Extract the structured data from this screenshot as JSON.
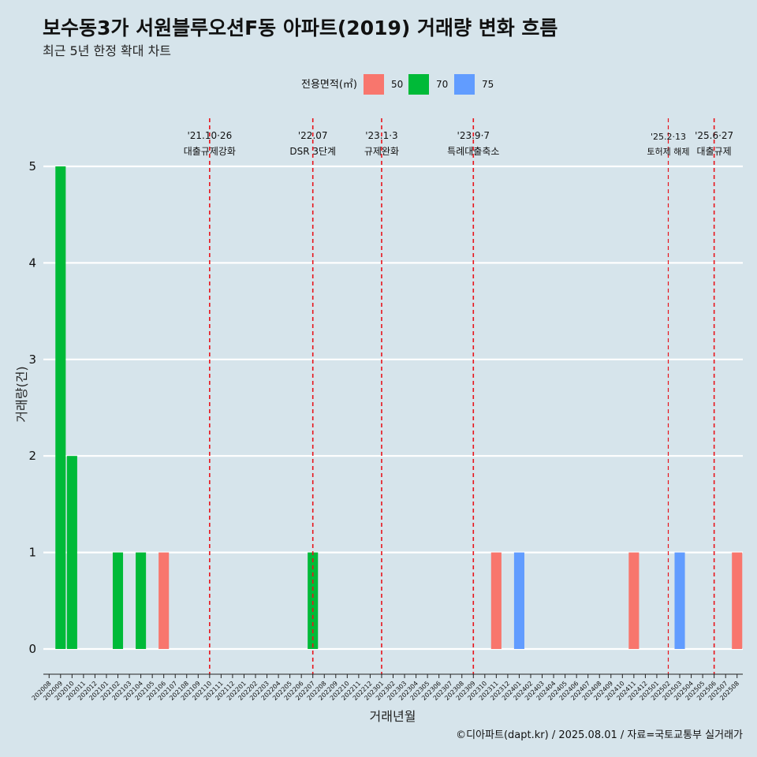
{
  "title": "보수동3가 서원블루오션F동 아파트(2019) 거래량 변화 흐름",
  "subtitle": "최근 5년 한정 확대 차트",
  "caption": "©디아파트(dapt.kr) / 2025.08.01 / 자료=국토교통부 실거래가",
  "chart_data": {
    "type": "bar",
    "xlabel": "거래년월",
    "ylabel": "거래량(건)",
    "ylim": [
      0,
      5
    ],
    "yticks": [
      "0",
      "1",
      "2",
      "3",
      "4",
      "5"
    ],
    "legend": {
      "title": "전용면적(㎡)",
      "placement": "top",
      "items": [
        {
          "label": "50",
          "color": "#F8766D"
        },
        {
          "label": "70",
          "color": "#00BA38"
        },
        {
          "label": "75",
          "color": "#619CFF"
        }
      ]
    },
    "categories": [
      "202008",
      "202009",
      "202010",
      "202011",
      "202012",
      "202101",
      "202102",
      "202103",
      "202104",
      "202105",
      "202106",
      "202107",
      "202108",
      "202109",
      "202110",
      "202111",
      "202112",
      "202201",
      "202202",
      "202203",
      "202204",
      "202205",
      "202206",
      "202207",
      "202208",
      "202209",
      "202210",
      "202211",
      "202212",
      "202301",
      "202302",
      "202303",
      "202304",
      "202305",
      "202306",
      "202307",
      "202308",
      "202309",
      "202310",
      "202311",
      "202312",
      "202401",
      "202402",
      "202403",
      "202404",
      "202405",
      "202406",
      "202407",
      "202408",
      "202409",
      "202410",
      "202411",
      "202412",
      "202501",
      "202502",
      "202503",
      "202504",
      "202505",
      "202506",
      "202507",
      "202508"
    ],
    "bars": [
      {
        "month": "202009",
        "area": "70",
        "value": 5
      },
      {
        "month": "202010",
        "area": "70",
        "value": 2
      },
      {
        "month": "202102",
        "area": "70",
        "value": 1
      },
      {
        "month": "202104",
        "area": "70",
        "value": 1
      },
      {
        "month": "202106",
        "area": "50",
        "value": 1
      },
      {
        "month": "202207",
        "area": "70",
        "value": 1
      },
      {
        "month": "202311",
        "area": "50",
        "value": 1
      },
      {
        "month": "202401",
        "area": "75",
        "value": 1
      },
      {
        "month": "202411",
        "area": "50",
        "value": 1
      },
      {
        "month": "202503",
        "area": "75",
        "value": 1
      },
      {
        "month": "202508",
        "area": "50",
        "value": 1
      }
    ],
    "events": [
      {
        "month": "202110",
        "date": "'21.10·26",
        "label": "대출규제강화"
      },
      {
        "month": "202207",
        "date": "'22.07",
        "label": "DSR 3단계"
      },
      {
        "month": "202301",
        "date": "'23.1·3",
        "label": "규제완화"
      },
      {
        "month": "202309",
        "date": "'23.9·7",
        "label": "특례대출축소"
      },
      {
        "month": "202502",
        "date": "'25.2·13",
        "label": "토허제 해제",
        "small": true
      },
      {
        "month": "202506",
        "date": "'25.6·27",
        "label": "대출규제"
      }
    ]
  }
}
